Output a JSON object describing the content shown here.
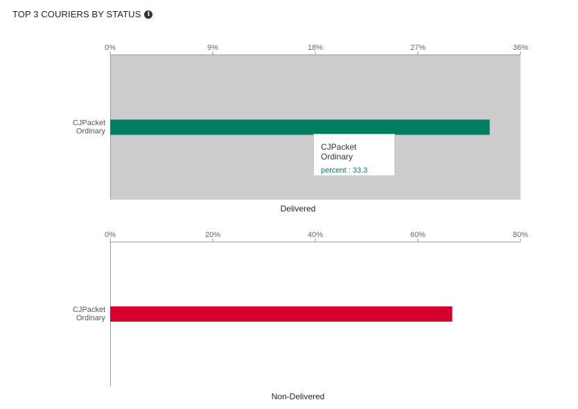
{
  "header": {
    "title": "TOP 3 COURIERS BY STATUS",
    "info_icon": "info-circle-icon",
    "info_glyph": "i"
  },
  "chart_data": [
    {
      "type": "bar",
      "orientation": "horizontal",
      "title": "",
      "xlabel": "Delivered",
      "ylabel": "",
      "categories": [
        "CJPacket Ordinary"
      ],
      "category_lines": [
        [
          "CJPacket",
          "Ordinary"
        ]
      ],
      "series": [
        {
          "name": "percent",
          "values": [
            33.3
          ],
          "color": "#007d63"
        }
      ],
      "xlim": [
        0,
        36
      ],
      "xticks": [
        "0%",
        "9%",
        "18%",
        "27%",
        "36%"
      ],
      "xtick_values": [
        0,
        9,
        18,
        27,
        36
      ],
      "plot_background": "#cccccc",
      "tooltip": {
        "category": "CJPacket Ordinary",
        "text": "percent : 33.3"
      }
    },
    {
      "type": "bar",
      "orientation": "horizontal",
      "title": "",
      "xlabel": "Non-Delivered",
      "ylabel": "",
      "categories": [
        "CJPacket Ordinary"
      ],
      "category_lines": [
        [
          "CJPacket",
          "Ordinary"
        ]
      ],
      "series": [
        {
          "name": "percent",
          "values": [
            66.7
          ],
          "color": "#d6002f"
        }
      ],
      "xlim": [
        0,
        80
      ],
      "xticks": [
        "0%",
        "20%",
        "40%",
        "60%",
        "80%"
      ],
      "xtick_values": [
        0,
        20,
        40,
        60,
        80
      ],
      "plot_background": "#ffffff"
    }
  ]
}
